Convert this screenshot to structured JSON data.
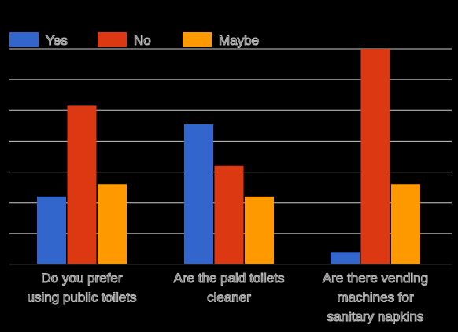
{
  "chart_data": {
    "type": "bar",
    "categories": [
      [
        "Do you prefer",
        "using public toilets"
      ],
      [
        "Are the paid toilets",
        "cleaner"
      ],
      [
        "Are there vending",
        "machines for",
        "sanitary napkins"
      ]
    ],
    "series": [
      {
        "name": "Yes",
        "color": "#3366cc",
        "values": [
          22,
          45.5,
          4
        ]
      },
      {
        "name": "No",
        "color": "#dc3912",
        "values": [
          51.5,
          32,
          70
        ]
      },
      {
        "name": "Maybe",
        "color": "#ff9900",
        "values": [
          26,
          22,
          26
        ]
      }
    ],
    "ylim": [
      0,
      70
    ],
    "grid": true,
    "legend": "top-left",
    "title": "",
    "xlabel": "",
    "ylabel": ""
  }
}
